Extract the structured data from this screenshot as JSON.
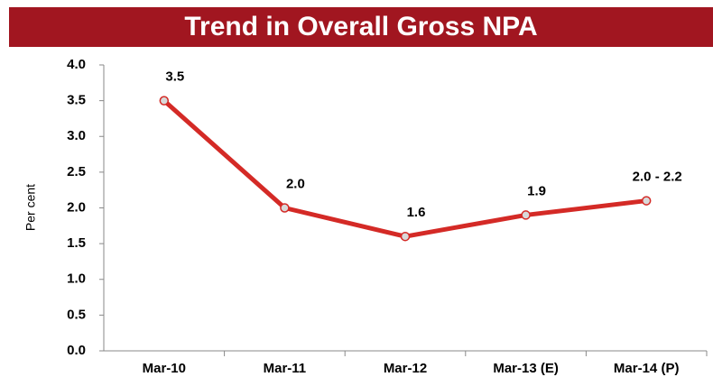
{
  "chart_data": {
    "type": "line",
    "title": "Trend in Overall Gross NPA",
    "ylabel": "Per cent",
    "categories": [
      "Mar-10",
      "Mar-11",
      "Mar-12",
      "Mar-13 (E)",
      "Mar-14 (P)"
    ],
    "series": [
      {
        "name": "Gross NPA",
        "color": "#d42a26",
        "values": [
          3.5,
          2.0,
          1.6,
          1.9,
          2.1
        ],
        "value_labels": [
          "3.5",
          "2.0",
          "1.6",
          "1.9",
          "2.0 - 2.2"
        ]
      }
    ],
    "ylim": [
      0,
      4
    ],
    "yticks": [
      {
        "value": 0,
        "label": "0.0"
      },
      {
        "value": 0.5,
        "label": "0.5"
      },
      {
        "value": 1,
        "label": "1.0"
      },
      {
        "value": 1.5,
        "label": "1.5"
      },
      {
        "value": 2,
        "label": "2.0"
      },
      {
        "value": 2.5,
        "label": "2.5"
      },
      {
        "value": 3,
        "label": "3.0"
      },
      {
        "value": 3.5,
        "label": "3.5"
      },
      {
        "value": 4,
        "label": "4.0"
      }
    ],
    "grid": false
  }
}
